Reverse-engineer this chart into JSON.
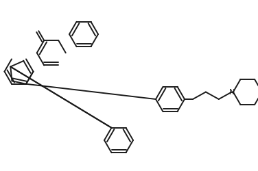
{
  "bg_color": "#ffffff",
  "line_color": "#1a1a1a",
  "line_width": 1.4,
  "fig_width": 3.76,
  "fig_height": 2.5,
  "dpi": 100
}
